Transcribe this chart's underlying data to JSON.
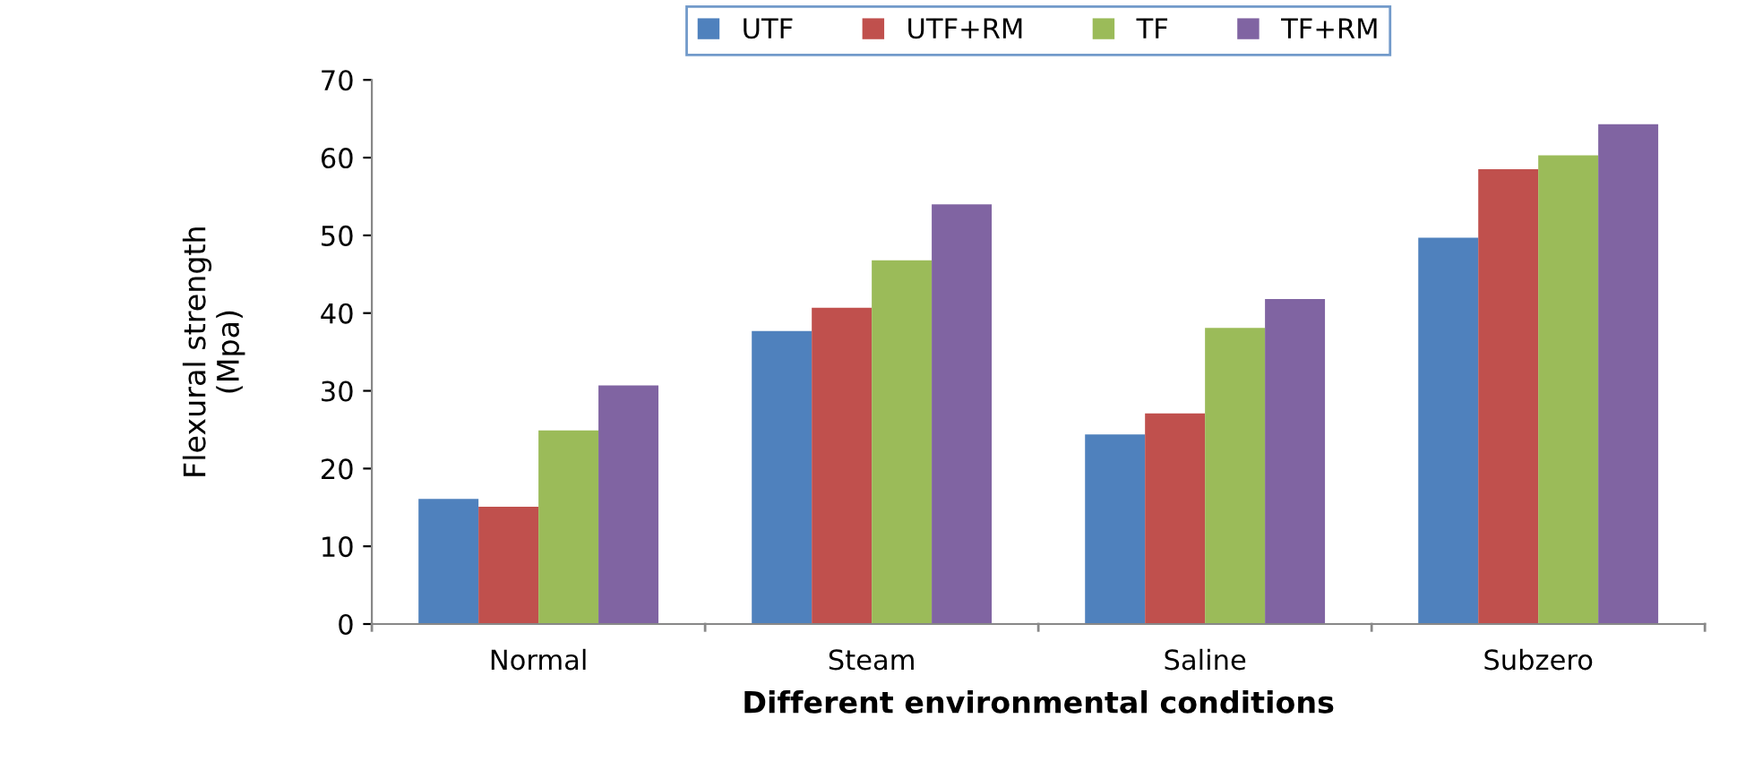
{
  "chart_data": {
    "type": "bar",
    "xlabel": "Different environmental conditions",
    "ylabel": "Flexural strength\n(Mpa)",
    "categories": [
      "Normal",
      "Steam",
      "Saline",
      "Subzero"
    ],
    "series": [
      {
        "name": "UTF",
        "color": "#4f81bd",
        "values": [
          16.1,
          37.7,
          24.4,
          49.7
        ]
      },
      {
        "name": "UTF+RM",
        "color": "#c0504d",
        "values": [
          15.1,
          40.7,
          27.1,
          58.5
        ]
      },
      {
        "name": "TF",
        "color": "#9bbb59",
        "values": [
          24.9,
          46.8,
          38.1,
          60.3
        ]
      },
      {
        "name": "TF+RM",
        "color": "#8064a2",
        "values": [
          30.7,
          54.0,
          41.8,
          64.3
        ]
      }
    ],
    "ylim": [
      0,
      70
    ],
    "yticks": [
      0,
      10,
      20,
      30,
      40,
      50,
      60,
      70
    ],
    "grid": false,
    "legend": "top"
  }
}
